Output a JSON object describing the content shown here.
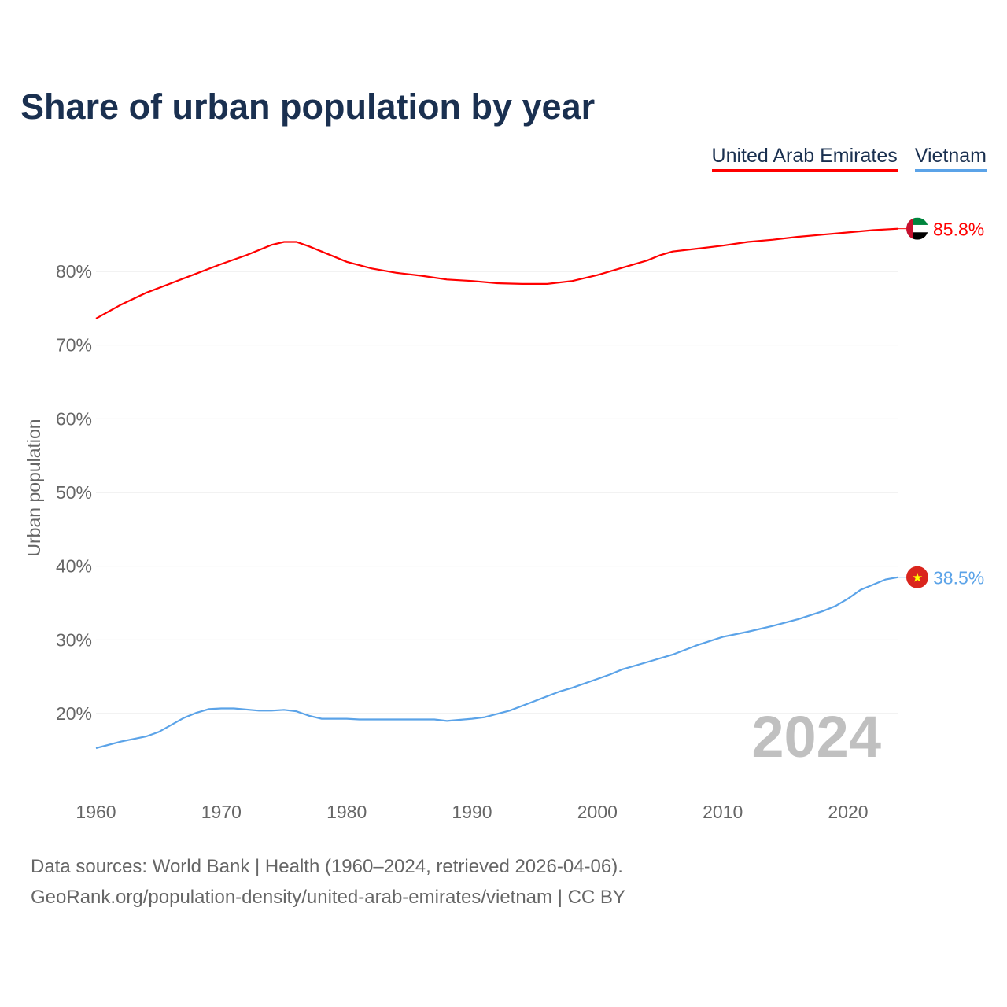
{
  "chart_data": {
    "type": "line",
    "title": "Share of urban population by year",
    "ylabel": "Urban population",
    "xlabel": "",
    "ylim": [
      10,
      90
    ],
    "xlim": [
      1960,
      2024
    ],
    "yticks": [
      20,
      30,
      40,
      50,
      60,
      70,
      80
    ],
    "ytick_labels": [
      "20%",
      "30%",
      "40%",
      "50%",
      "60%",
      "70%",
      "80%"
    ],
    "xticks": [
      1960,
      1970,
      1980,
      1990,
      2000,
      2010,
      2020
    ],
    "xtick_labels": [
      "1960",
      "1970",
      "1980",
      "1990",
      "2000",
      "2010",
      "2020"
    ],
    "grid": true,
    "legend_position": "top-right",
    "year_watermark": "2024",
    "series": [
      {
        "name": "United Arab Emirates",
        "color": "#ff0000",
        "end_label": "85.8%",
        "flag": "uae-flag",
        "points": [
          [
            1960,
            73.6
          ],
          [
            1962,
            75.5
          ],
          [
            1964,
            77.1
          ],
          [
            1966,
            78.4
          ],
          [
            1968,
            79.7
          ],
          [
            1970,
            81.0
          ],
          [
            1972,
            82.2
          ],
          [
            1974,
            83.6
          ],
          [
            1975,
            84.0
          ],
          [
            1976,
            84.0
          ],
          [
            1977,
            83.4
          ],
          [
            1978,
            82.7
          ],
          [
            1980,
            81.3
          ],
          [
            1982,
            80.4
          ],
          [
            1984,
            79.8
          ],
          [
            1986,
            79.4
          ],
          [
            1988,
            78.9
          ],
          [
            1990,
            78.7
          ],
          [
            1992,
            78.4
          ],
          [
            1994,
            78.3
          ],
          [
            1996,
            78.3
          ],
          [
            1998,
            78.7
          ],
          [
            2000,
            79.5
          ],
          [
            2002,
            80.5
          ],
          [
            2004,
            81.5
          ],
          [
            2005,
            82.2
          ],
          [
            2006,
            82.7
          ],
          [
            2008,
            83.1
          ],
          [
            2010,
            83.5
          ],
          [
            2012,
            84.0
          ],
          [
            2014,
            84.3
          ],
          [
            2016,
            84.7
          ],
          [
            2018,
            85.0
          ],
          [
            2020,
            85.3
          ],
          [
            2022,
            85.6
          ],
          [
            2024,
            85.8
          ]
        ]
      },
      {
        "name": "Vietnam",
        "color": "#5ba3e8",
        "end_label": "38.5%",
        "flag": "vietnam-flag",
        "points": [
          [
            1960,
            15.3
          ],
          [
            1962,
            16.2
          ],
          [
            1964,
            16.9
          ],
          [
            1965,
            17.5
          ],
          [
            1967,
            19.4
          ],
          [
            1968,
            20.1
          ],
          [
            1969,
            20.6
          ],
          [
            1970,
            20.7
          ],
          [
            1971,
            20.7
          ],
          [
            1973,
            20.4
          ],
          [
            1974,
            20.4
          ],
          [
            1975,
            20.5
          ],
          [
            1976,
            20.3
          ],
          [
            1977,
            19.7
          ],
          [
            1978,
            19.3
          ],
          [
            1980,
            19.3
          ],
          [
            1981,
            19.2
          ],
          [
            1987,
            19.2
          ],
          [
            1988,
            19.0
          ],
          [
            1990,
            19.3
          ],
          [
            1991,
            19.5
          ],
          [
            1993,
            20.4
          ],
          [
            1995,
            21.7
          ],
          [
            1997,
            23.0
          ],
          [
            1998,
            23.5
          ],
          [
            2000,
            24.7
          ],
          [
            2001,
            25.3
          ],
          [
            2002,
            26.0
          ],
          [
            2004,
            27.0
          ],
          [
            2006,
            28.0
          ],
          [
            2008,
            29.3
          ],
          [
            2010,
            30.4
          ],
          [
            2012,
            31.1
          ],
          [
            2014,
            31.9
          ],
          [
            2016,
            32.8
          ],
          [
            2018,
            33.9
          ],
          [
            2019,
            34.6
          ],
          [
            2020,
            35.6
          ],
          [
            2021,
            36.8
          ],
          [
            2022,
            37.5
          ],
          [
            2023,
            38.2
          ],
          [
            2024,
            38.5
          ]
        ]
      }
    ]
  },
  "footer": {
    "line1": "Data sources: World Bank | Health (1960–2024, retrieved 2026-04-06).",
    "line2": "GeoRank.org/population-density/united-arab-emirates/vietnam | CC BY"
  }
}
